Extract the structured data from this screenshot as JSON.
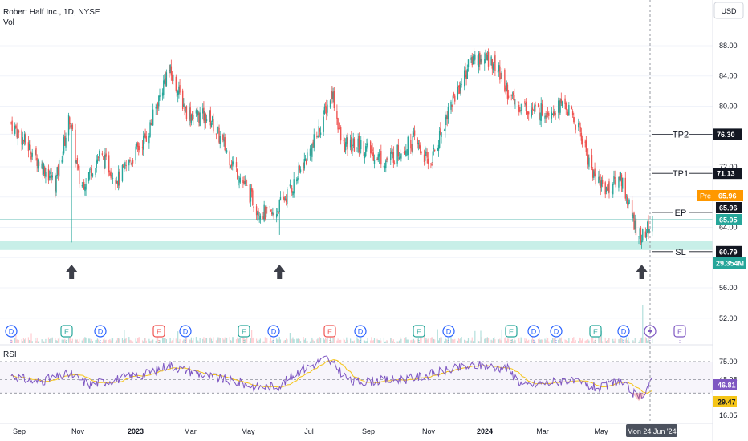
{
  "header": {
    "symbol": "Robert Half Inc., 1D, NYSE",
    "volume_label": "Vol",
    "currency_button": "USD"
  },
  "rsi": {
    "label": "RSI",
    "levels": [
      75.0,
      48.98,
      29.47,
      16.05
    ],
    "rsi_value": "46.81",
    "ma_value": "29.47"
  },
  "colors": {
    "up": "#26a69a",
    "down": "#ef5350",
    "support_zone": "#c8efe8",
    "rsi_line": "#7e57c2",
    "rsi_ma": "#f5c518",
    "pre": "#ff9800",
    "label_bg": "#131722",
    "volume_tag": "#26a69a"
  },
  "chart_data": {
    "type": "candlestick",
    "price_axis": {
      "ticks": [
        88.0,
        84.0,
        80.0,
        76.3,
        72.0,
        68.0,
        64.0,
        60.0,
        56.0,
        52.0
      ],
      "labels": [
        "88.00",
        "84.00",
        "80.00",
        "",
        "72.00",
        "",
        "64.00",
        "",
        "56.00",
        "52.00"
      ]
    },
    "time_axis": [
      "Sep",
      "Nov",
      "2023",
      "Mar",
      "May",
      "Jul",
      "Sep",
      "Nov",
      "2024",
      "Mar",
      "May"
    ],
    "crosshair_date": "Mon 24 Jun '24",
    "price_trend": [
      [
        "2022-08-25",
        77.8
      ],
      [
        "2022-09-20",
        73.2
      ],
      [
        "2022-10-10",
        69.8
      ],
      [
        "2022-10-25",
        78.5
      ],
      [
        "2022-11-05",
        69.2
      ],
      [
        "2022-11-25",
        73.5
      ],
      [
        "2022-12-15",
        70.4
      ],
      [
        "2023-01-15",
        76.5
      ],
      [
        "2023-02-05",
        85.0
      ],
      [
        "2023-02-25",
        79.0
      ],
      [
        "2023-03-20",
        78.5
      ],
      [
        "2023-04-15",
        72.0
      ],
      [
        "2023-05-10",
        66.2
      ],
      [
        "2023-05-25",
        65.5
      ],
      [
        "2023-06-15",
        69.5
      ],
      [
        "2023-07-10",
        76.0
      ],
      [
        "2023-07-26",
        82.0
      ],
      [
        "2023-08-05",
        74.8
      ],
      [
        "2023-08-25",
        74.8
      ],
      [
        "2023-09-20",
        72.8
      ],
      [
        "2023-10-20",
        75.5
      ],
      [
        "2023-11-05",
        72.2
      ],
      [
        "2023-11-25",
        79.8
      ],
      [
        "2023-12-20",
        86.5
      ],
      [
        "2024-01-10",
        86.0
      ],
      [
        "2024-01-31",
        80.5
      ],
      [
        "2024-02-25",
        79.2
      ],
      [
        "2024-03-25",
        80.2
      ],
      [
        "2024-04-10",
        76.5
      ],
      [
        "2024-04-25",
        70.5
      ],
      [
        "2024-05-10",
        69.0
      ],
      [
        "2024-05-22",
        70.8
      ],
      [
        "2024-06-05",
        64.5
      ],
      [
        "2024-06-13",
        62.5
      ],
      [
        "2024-06-24",
        64.7
      ]
    ],
    "support_zone": [
      61.0,
      62.2
    ],
    "levels": {
      "TP2": "76.30",
      "TP1": "71.13",
      "EP": "65.96",
      "SL": "60.79"
    },
    "price_tags": {
      "pre_label": "Pre",
      "pre": "65.96",
      "last": "65.96",
      "close": "65.05",
      "volume": "29.354M"
    },
    "events": [
      "D",
      "E",
      "D",
      "E",
      "D",
      "E",
      "D",
      "E",
      "D",
      "E",
      "D",
      "E",
      "D",
      "D",
      "E",
      "D",
      "flash",
      "E"
    ],
    "rsi_trend": [
      [
        "2022-08-25",
        55
      ],
      [
        "2022-09-20",
        45
      ],
      [
        "2022-10-25",
        57
      ],
      [
        "2022-11-15",
        42
      ],
      [
        "2023-01-15",
        58
      ],
      [
        "2023-02-05",
        70
      ],
      [
        "2023-03-15",
        55
      ],
      [
        "2023-05-10",
        38
      ],
      [
        "2023-06-01",
        40
      ],
      [
        "2023-06-20",
        60
      ],
      [
        "2023-07-20",
        80
      ],
      [
        "2023-08-15",
        45
      ],
      [
        "2023-10-15",
        50
      ],
      [
        "2023-11-25",
        63
      ],
      [
        "2023-12-25",
        70
      ],
      [
        "2024-01-25",
        65
      ],
      [
        "2024-02-10",
        40
      ],
      [
        "2024-03-25",
        48
      ],
      [
        "2024-05-01",
        36
      ],
      [
        "2024-05-20",
        48
      ],
      [
        "2024-06-10",
        22
      ],
      [
        "2024-06-24",
        46.81
      ]
    ]
  }
}
